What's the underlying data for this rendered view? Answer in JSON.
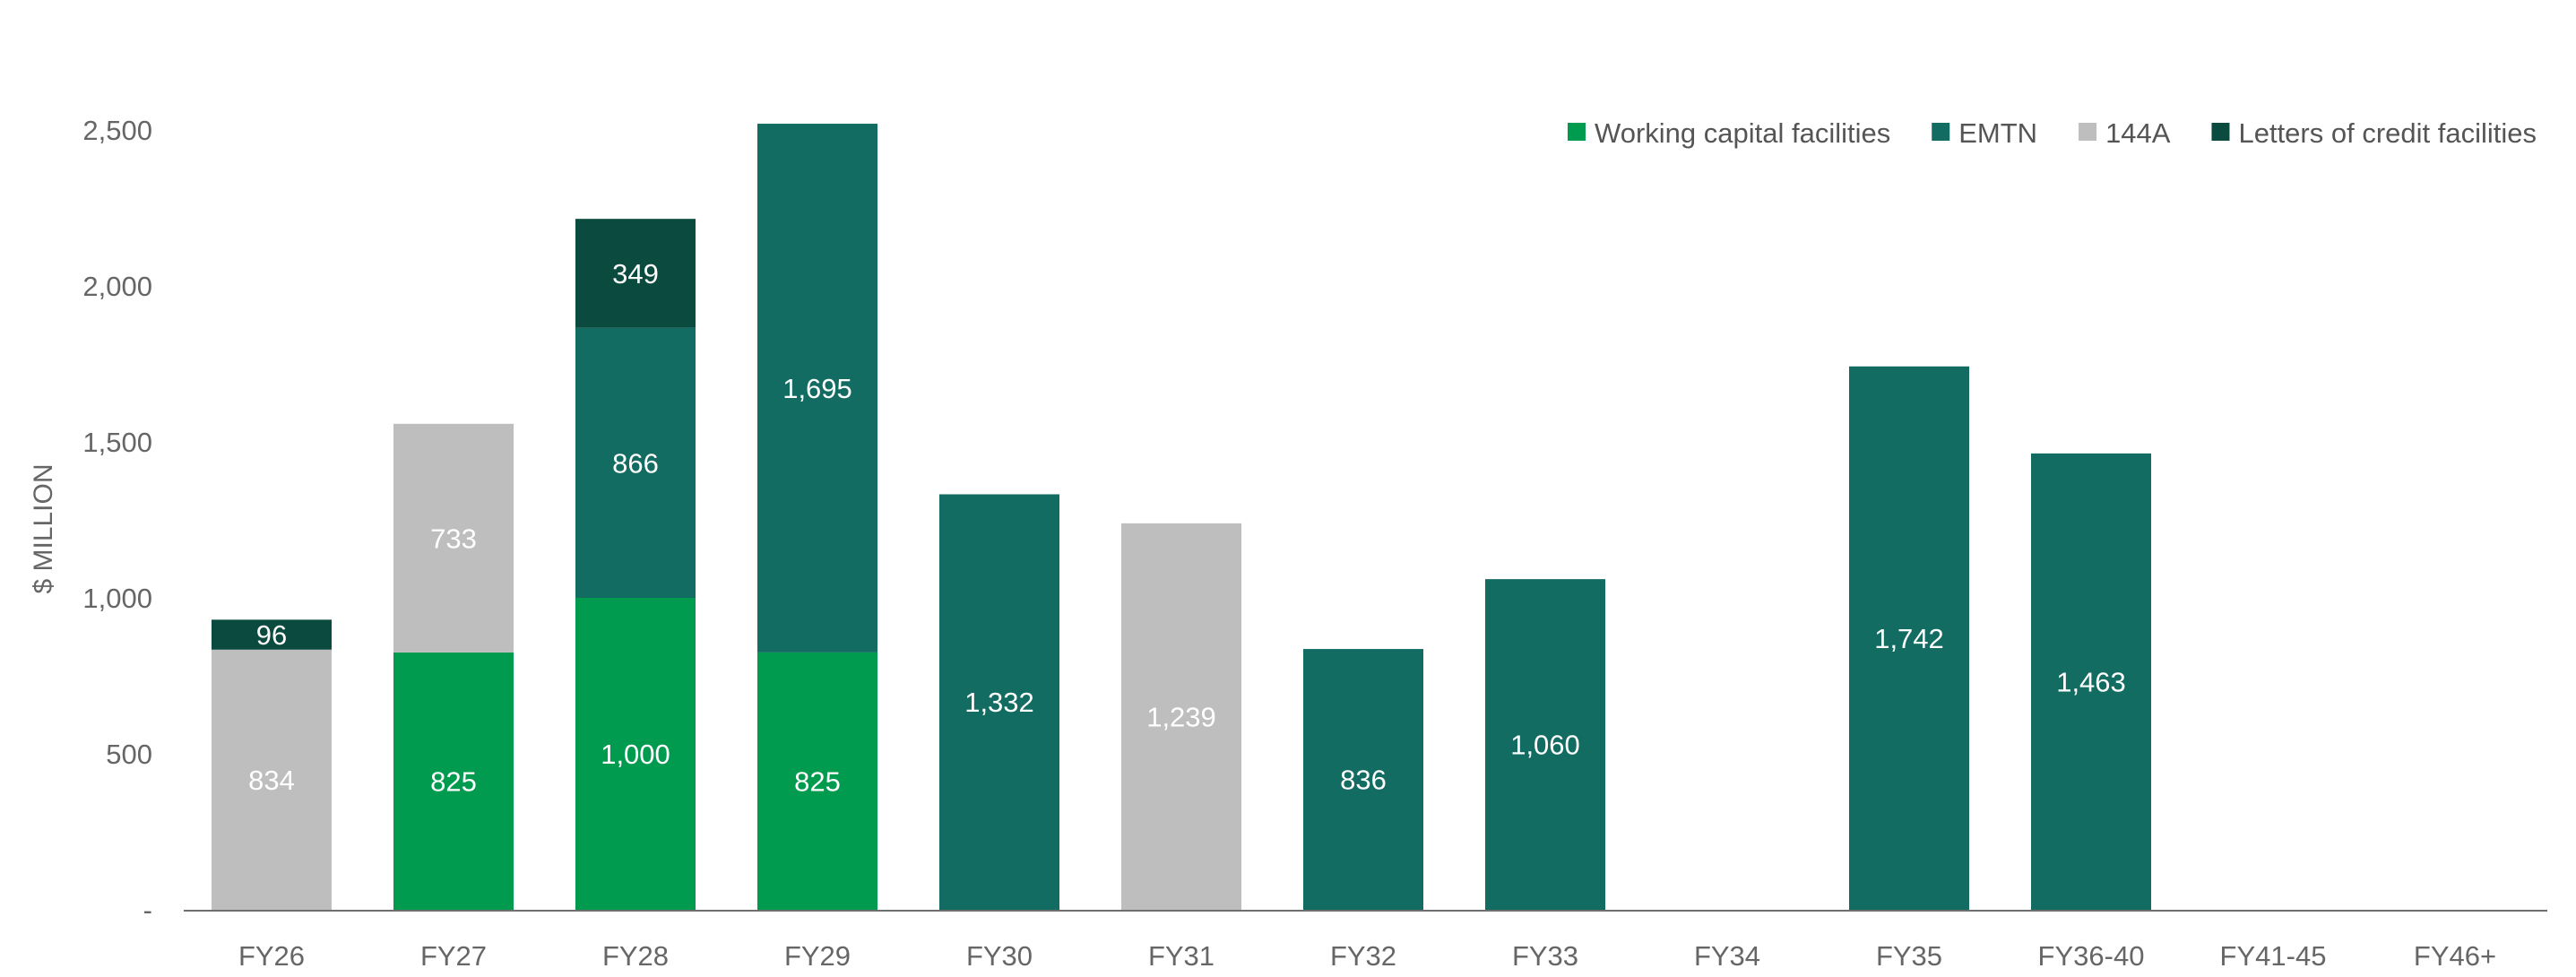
{
  "chart_data": {
    "type": "bar",
    "stacked": true,
    "ylabel": "$ MILLION",
    "xlabel": "",
    "ylim": [
      0,
      2500
    ],
    "y_ticks": [
      {
        "value": 0,
        "label": "-"
      },
      {
        "value": 500,
        "label": "500"
      },
      {
        "value": 1000,
        "label": "1,000"
      },
      {
        "value": 1500,
        "label": "1,500"
      },
      {
        "value": 2000,
        "label": "2,000"
      },
      {
        "value": 2500,
        "label": "2,500"
      }
    ],
    "grid": false,
    "legend_position": "top-right",
    "categories": [
      "FY26",
      "FY27",
      "FY28",
      "FY29",
      "FY30",
      "FY31",
      "FY32",
      "FY33",
      "FY34",
      "FY35",
      "FY36-40",
      "FY41-45",
      "FY46+"
    ],
    "series": [
      {
        "name": "Working capital facilities",
        "color": "#009B4E",
        "label_color": "#FFFFFF",
        "values": [
          null,
          825,
          1000,
          825,
          null,
          null,
          null,
          null,
          null,
          null,
          null,
          null,
          null
        ],
        "labels": [
          null,
          "825",
          "1,000",
          "825",
          null,
          null,
          null,
          null,
          null,
          null,
          null,
          null,
          null
        ]
      },
      {
        "name": "EMTN",
        "color": "#126C61",
        "label_color": "#FFFFFF",
        "values": [
          null,
          null,
          866,
          1695,
          1332,
          null,
          836,
          1060,
          null,
          1742,
          1463,
          null,
          null
        ],
        "labels": [
          null,
          null,
          "866",
          "1,695",
          "1,332",
          null,
          "836",
          "1,060",
          null,
          "1,742",
          "1,463",
          null,
          null
        ]
      },
      {
        "name": "144A",
        "color": "#BEBEBE",
        "label_color": "#FFFFFF",
        "values": [
          834,
          733,
          null,
          null,
          null,
          1239,
          null,
          null,
          null,
          null,
          null,
          null,
          null
        ],
        "labels": [
          "834",
          "733",
          null,
          null,
          null,
          "1,239",
          null,
          null,
          null,
          null,
          null,
          null,
          null
        ]
      },
      {
        "name": "Letters of credit facilities",
        "color": "#0B4A3F",
        "label_color": "#FFFFFF",
        "values": [
          96,
          null,
          349,
          null,
          null,
          null,
          null,
          null,
          null,
          null,
          null,
          null,
          null
        ],
        "labels": [
          "96",
          null,
          "349",
          null,
          null,
          null,
          null,
          null,
          null,
          null,
          null,
          null,
          null
        ]
      }
    ],
    "stack_order": [
      "Working capital facilities",
      "144A",
      "EMTN",
      "Letters of credit facilities"
    ],
    "axis_color": "#6E6E6E",
    "tick_text_color": "#666666"
  }
}
